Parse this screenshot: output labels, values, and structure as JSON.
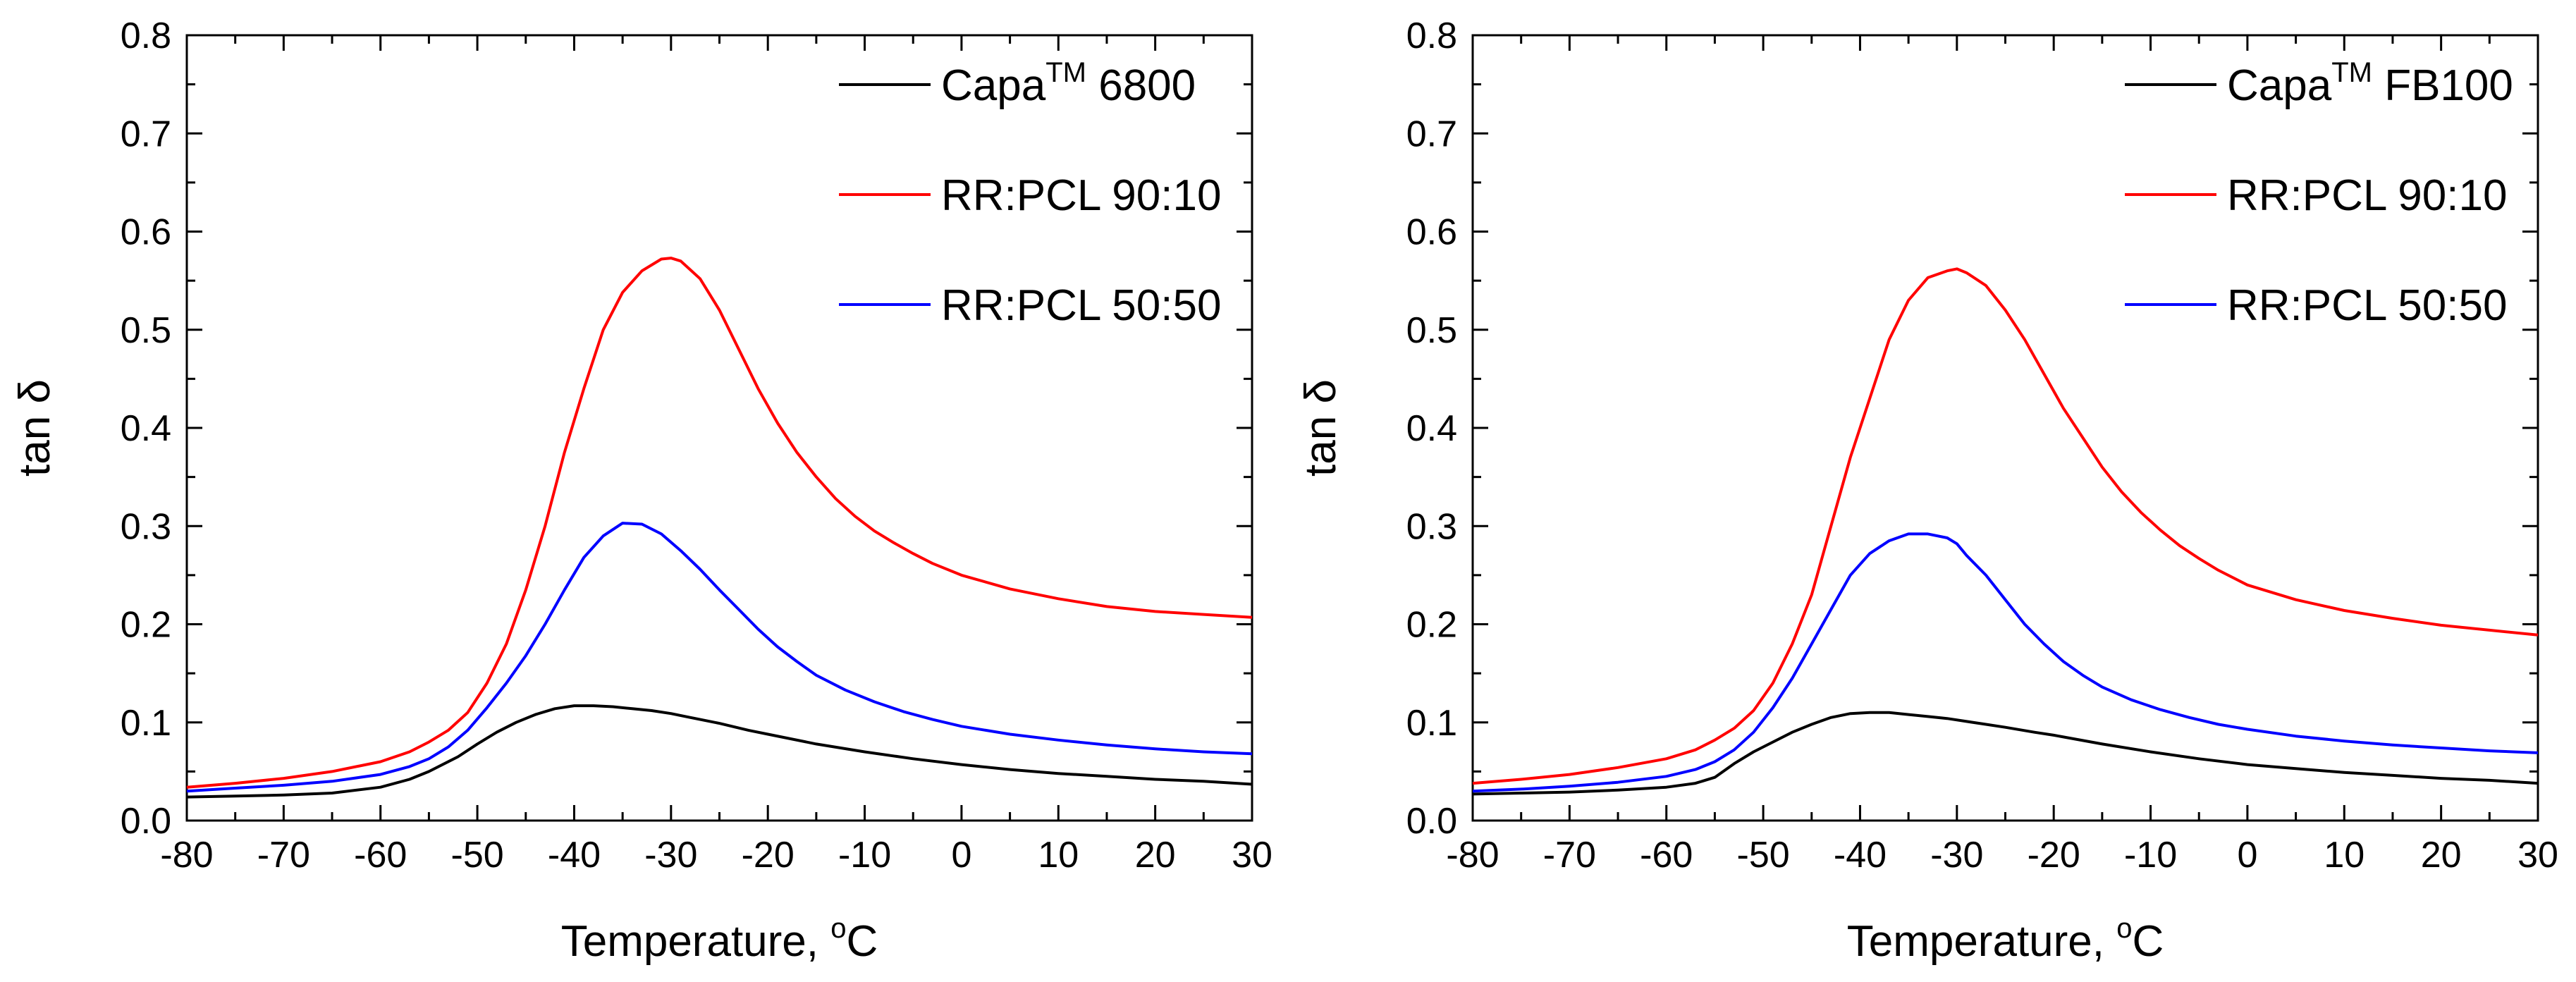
{
  "chart_data": [
    {
      "type": "line",
      "title": "",
      "xlabel": "Temperature, ",
      "xlabel_degree": "o",
      "xlabel_unit": "C",
      "ylabel": "tan δ",
      "xlim": [
        -80,
        30
      ],
      "ylim": [
        0.0,
        0.8
      ],
      "xticks": [
        -80,
        -70,
        -60,
        -50,
        -40,
        -30,
        -20,
        -10,
        0,
        10,
        20,
        30
      ],
      "xtick_labels": [
        "-80",
        "-70",
        "-60",
        "-50",
        "-40",
        "-30",
        "-20",
        "-10",
        "0",
        "10",
        "20",
        "30"
      ],
      "yticks": [
        0.0,
        0.1,
        0.2,
        0.3,
        0.4,
        0.5,
        0.6,
        0.7,
        0.8
      ],
      "ytick_labels": [
        "0.0",
        "0.1",
        "0.2",
        "0.3",
        "0.4",
        "0.5",
        "0.6",
        "0.7",
        "0.8"
      ],
      "grid": false,
      "legend_position": "top-right",
      "series": [
        {
          "name": "Capa 6800",
          "label_main": "Capa",
          "label_sup": "TM",
          "label_rest": " 6800",
          "color": "#000000",
          "x": [
            -80,
            -75,
            -70,
            -65,
            -60,
            -57,
            -55,
            -52,
            -50,
            -48,
            -46,
            -44,
            -42,
            -40,
            -38,
            -36,
            -34,
            -32,
            -30,
            -28,
            -25,
            -22,
            -20,
            -15,
            -10,
            -5,
            0,
            5,
            10,
            15,
            20,
            25,
            30
          ],
          "y": [
            0.024,
            0.025,
            0.026,
            0.028,
            0.034,
            0.042,
            0.05,
            0.065,
            0.078,
            0.09,
            0.1,
            0.108,
            0.114,
            0.117,
            0.117,
            0.116,
            0.114,
            0.112,
            0.109,
            0.105,
            0.099,
            0.092,
            0.088,
            0.078,
            0.07,
            0.063,
            0.057,
            0.052,
            0.048,
            0.045,
            0.042,
            0.04,
            0.037
          ]
        },
        {
          "name": "RR:PCL 90:10",
          "label_main": "RR:PCL 90:10",
          "label_sup": "",
          "label_rest": "",
          "color": "#ff0000",
          "x": [
            -80,
            -75,
            -70,
            -65,
            -60,
            -57,
            -55,
            -53,
            -51,
            -49,
            -47,
            -45,
            -43,
            -41,
            -39,
            -37,
            -35,
            -33,
            -31,
            -30,
            -29,
            -27,
            -25,
            -23,
            -21,
            -19,
            -17,
            -15,
            -13,
            -11,
            -9,
            -7,
            -5,
            -3,
            0,
            5,
            10,
            15,
            20,
            25,
            30
          ],
          "y": [
            0.034,
            0.038,
            0.043,
            0.05,
            0.06,
            0.07,
            0.08,
            0.092,
            0.11,
            0.14,
            0.18,
            0.235,
            0.3,
            0.375,
            0.44,
            0.5,
            0.538,
            0.56,
            0.572,
            0.573,
            0.57,
            0.552,
            0.52,
            0.48,
            0.44,
            0.405,
            0.375,
            0.35,
            0.328,
            0.31,
            0.295,
            0.283,
            0.272,
            0.262,
            0.25,
            0.236,
            0.226,
            0.218,
            0.213,
            0.21,
            0.207
          ]
        },
        {
          "name": "RR:PCL 50:50",
          "label_main": "RR:PCL 50:50",
          "label_sup": "",
          "label_rest": "",
          "color": "#0000ff",
          "x": [
            -80,
            -75,
            -70,
            -65,
            -60,
            -57,
            -55,
            -53,
            -51,
            -49,
            -47,
            -45,
            -43,
            -41,
            -39,
            -37,
            -35,
            -33,
            -31,
            -29,
            -27,
            -25,
            -23,
            -21,
            -19,
            -17,
            -15,
            -12,
            -9,
            -6,
            -3,
            0,
            5,
            10,
            15,
            20,
            25,
            30
          ],
          "y": [
            0.03,
            0.033,
            0.036,
            0.04,
            0.047,
            0.055,
            0.063,
            0.075,
            0.092,
            0.115,
            0.14,
            0.168,
            0.2,
            0.235,
            0.268,
            0.29,
            0.303,
            0.302,
            0.292,
            0.275,
            0.256,
            0.235,
            0.215,
            0.195,
            0.177,
            0.162,
            0.148,
            0.133,
            0.121,
            0.111,
            0.103,
            0.096,
            0.088,
            0.082,
            0.077,
            0.073,
            0.07,
            0.068
          ]
        }
      ]
    },
    {
      "type": "line",
      "title": "",
      "xlabel": "Temperature, ",
      "xlabel_degree": "o",
      "xlabel_unit": "C",
      "ylabel": "tan δ",
      "xlim": [
        -80,
        30
      ],
      "ylim": [
        0.0,
        0.8
      ],
      "xticks": [
        -80,
        -70,
        -60,
        -50,
        -40,
        -30,
        -20,
        -10,
        0,
        10,
        20,
        30
      ],
      "xtick_labels": [
        "-80",
        "-70",
        "-60",
        "-50",
        "-40",
        "-30",
        "-20",
        "-10",
        "0",
        "10",
        "20",
        "30"
      ],
      "yticks": [
        0.0,
        0.1,
        0.2,
        0.3,
        0.4,
        0.5,
        0.6,
        0.7,
        0.8
      ],
      "ytick_labels": [
        "0.0",
        "0.1",
        "0.2",
        "0.3",
        "0.4",
        "0.5",
        "0.6",
        "0.7",
        "0.8"
      ],
      "grid": false,
      "legend_position": "top-right",
      "series": [
        {
          "name": "Capa FB100",
          "label_main": "Capa",
          "label_sup": "TM",
          "label_rest": " FB100",
          "color": "#000000",
          "x": [
            -80,
            -75,
            -70,
            -65,
            -60,
            -57,
            -55,
            -53,
            -51,
            -49,
            -47,
            -45,
            -43,
            -41,
            -39,
            -37,
            -35,
            -33,
            -31,
            -29,
            -27,
            -25,
            -22,
            -20,
            -15,
            -10,
            -5,
            0,
            5,
            10,
            15,
            20,
            25,
            30
          ],
          "y": [
            0.027,
            0.028,
            0.029,
            0.031,
            0.034,
            0.038,
            0.044,
            0.058,
            0.07,
            0.08,
            0.09,
            0.098,
            0.105,
            0.109,
            0.11,
            0.11,
            0.108,
            0.106,
            0.104,
            0.101,
            0.098,
            0.095,
            0.09,
            0.087,
            0.078,
            0.07,
            0.063,
            0.057,
            0.053,
            0.049,
            0.046,
            0.043,
            0.041,
            0.038
          ]
        },
        {
          "name": "RR:PCL 90:10",
          "label_main": "RR:PCL 90:10",
          "label_sup": "",
          "label_rest": "",
          "color": "#ff0000",
          "x": [
            -80,
            -75,
            -70,
            -65,
            -60,
            -57,
            -55,
            -53,
            -51,
            -49,
            -47,
            -45,
            -43,
            -41,
            -39,
            -37,
            -35,
            -33,
            -31,
            -30,
            -29,
            -27,
            -25,
            -23,
            -21,
            -19,
            -17,
            -15,
            -13,
            -11,
            -9,
            -7,
            -5,
            -3,
            0,
            5,
            10,
            15,
            20,
            25,
            30
          ],
          "y": [
            0.038,
            0.042,
            0.047,
            0.054,
            0.063,
            0.072,
            0.082,
            0.094,
            0.112,
            0.14,
            0.18,
            0.23,
            0.3,
            0.37,
            0.43,
            0.49,
            0.53,
            0.553,
            0.56,
            0.562,
            0.558,
            0.545,
            0.52,
            0.49,
            0.455,
            0.42,
            0.39,
            0.36,
            0.335,
            0.314,
            0.296,
            0.28,
            0.267,
            0.255,
            0.24,
            0.225,
            0.214,
            0.206,
            0.199,
            0.194,
            0.189
          ]
        },
        {
          "name": "RR:PCL 50:50",
          "label_main": "RR:PCL 50:50",
          "label_sup": "",
          "label_rest": "",
          "color": "#0000ff",
          "x": [
            -80,
            -75,
            -70,
            -65,
            -60,
            -57,
            -55,
            -53,
            -51,
            -49,
            -47,
            -45,
            -43,
            -41,
            -39,
            -37,
            -35,
            -33,
            -31,
            -30,
            -29,
            -27,
            -25,
            -23,
            -21,
            -19,
            -17,
            -15,
            -12,
            -9,
            -6,
            -3,
            0,
            5,
            10,
            15,
            20,
            25,
            30
          ],
          "y": [
            0.03,
            0.032,
            0.035,
            0.039,
            0.045,
            0.052,
            0.06,
            0.072,
            0.09,
            0.115,
            0.145,
            0.18,
            0.215,
            0.25,
            0.272,
            0.285,
            0.292,
            0.292,
            0.288,
            0.282,
            0.27,
            0.25,
            0.225,
            0.2,
            0.18,
            0.162,
            0.148,
            0.136,
            0.123,
            0.113,
            0.105,
            0.098,
            0.093,
            0.086,
            0.081,
            0.077,
            0.074,
            0.071,
            0.069
          ]
        }
      ]
    }
  ]
}
